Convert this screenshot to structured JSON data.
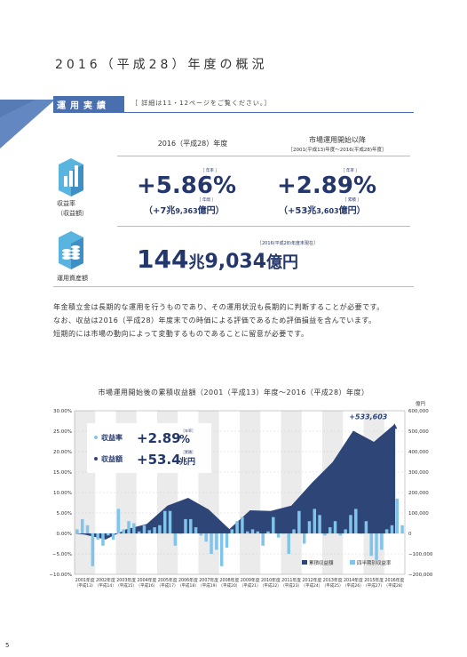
{
  "page": {
    "title": "2016（平成28）年度の概況",
    "number": "5"
  },
  "section": {
    "label": "運用実績",
    "note": "［ 詳細は11・12ページをご覧ください。］"
  },
  "columns": {
    "fy": "2016（平成28）年度",
    "since_title": "市場運用開始以降",
    "since_sub": "［2001(平成13)年度～2016(平成28)年度］"
  },
  "returns": {
    "label1": "収益率",
    "label2": "（収益額）",
    "fy_rate": "+5.86",
    "fy_rate_unit": "%",
    "fy_rate_tag": "［ 年率 ］",
    "fy_amount_open": "（+7",
    "fy_amount_cho": "兆",
    "fy_amount_num": "9,363",
    "fy_amount_oku": "億円",
    "fy_amount_close": "）",
    "fy_amount_tag": "［ 年間 ］",
    "since_rate": "+2.89",
    "since_rate_unit": "%",
    "since_rate_tag": "［ 年率 ］",
    "since_amount_open": "（+53",
    "since_amount_cho": "兆",
    "since_amount_num": "3,603",
    "since_amount_oku": "億円",
    "since_amount_close": "）",
    "since_amount_tag": "［ 累積 ］"
  },
  "assets": {
    "label": "運用資産額",
    "tag": "［2016(平成28)年度末現在］",
    "cho_num": "144",
    "cho": "兆",
    "oku_num": "9,034",
    "oku": "億円"
  },
  "body": {
    "lines": [
      "年金積立金は長期的な運用を行うものであり、その運用状況も長期的に判断することが必要です。",
      "なお、収益は2016（平成28）年度末での時価による評価であるため評価損益を含んでいます。",
      "短期的には市場の動向によって変動するものであることに留意が必要です。"
    ]
  },
  "chart": {
    "title": "市場運用開始後の累積収益額（2001（平成13）年度～2016（平成28）年度）",
    "right_unit": "億円",
    "peak_label": "+533,603",
    "box": {
      "rate_label": "収益率",
      "rate_value": "+2.89",
      "rate_unit": "%",
      "rate_tag": "［年率］",
      "amount_label": "収益額",
      "amount_value": "+53.4",
      "amount_unit": "兆円",
      "amount_tag": "［累積］"
    },
    "legend": {
      "cumulative": "累積収益額",
      "quarterly": "四半期別収益率"
    },
    "colors": {
      "area": "#2d4577",
      "bar": "#7fc4ea",
      "bg": "#ebebeb"
    }
  },
  "chart_data": {
    "type": "area",
    "title": "市場運用開始後の累積収益額（2001（平成13）年度～2016（平成28）年度）",
    "x_labels": [
      {
        "year": "2001年度",
        "era": "（平成13）"
      },
      {
        "year": "2002年度",
        "era": "（平成14）"
      },
      {
        "year": "2003年度",
        "era": "（平成15）"
      },
      {
        "year": "2004年度",
        "era": "（平成16）"
      },
      {
        "year": "2005年度",
        "era": "（平成17）"
      },
      {
        "year": "2006年度",
        "era": "（平成18）"
      },
      {
        "year": "2007年度",
        "era": "（平成19）"
      },
      {
        "year": "2008年度",
        "era": "（平成20）"
      },
      {
        "year": "2009年度",
        "era": "（平成21）"
      },
      {
        "year": "2010年度",
        "era": "（平成22）"
      },
      {
        "year": "2011年度",
        "era": "（平成23）"
      },
      {
        "year": "2012年度",
        "era": "（平成24）"
      },
      {
        "year": "2013年度",
        "era": "（平成25）"
      },
      {
        "year": "2014年度",
        "era": "（平成26）"
      },
      {
        "year": "2015年度",
        "era": "（平成27）"
      },
      {
        "year": "2016年度",
        "era": "（平成28）"
      }
    ],
    "left_axis": {
      "min": -10,
      "max": 30,
      "ticks": [
        "30.00%",
        "25.00%",
        "20.00%",
        "15.00%",
        "10.00%",
        "5.00%",
        "0.00%",
        "−5.00%",
        "−10.00%"
      ]
    },
    "right_axis": {
      "unit": "億円",
      "min": -200000,
      "max": 600000,
      "ticks": [
        "600,000",
        "500,000",
        "400,000",
        "300,000",
        "200,000",
        "100,000",
        "0",
        "−100,000",
        "−200,000"
      ]
    },
    "cumulative": {
      "name": "累積収益額",
      "x": [
        2001,
        2002,
        2003,
        2004,
        2005,
        2006,
        2007,
        2008,
        2009,
        2010,
        2011,
        2012,
        2013,
        2014,
        2015,
        2016
      ],
      "values": [
        -5800,
        -30000,
        20000,
        46000,
        136000,
        174000,
        117000,
        21000,
        113000,
        110000,
        136000,
        248000,
        349000,
        502000,
        448000,
        533603
      ]
    },
    "quarterly_returns": {
      "name": "四半期別収益率",
      "values": [
        1.0,
        3.5,
        2.0,
        -8.0,
        -1.5,
        -3.0,
        -0.5,
        -1.5,
        6.0,
        1.0,
        3.0,
        2.5,
        0.5,
        2.0,
        0.8,
        1.5,
        2.0,
        5.5,
        5.5,
        -3.0,
        0.0,
        3.5,
        3.5,
        1.5,
        -0.5,
        -2.0,
        -5.0,
        -4.0,
        -8.0,
        -3.5,
        1.0,
        3.0,
        4.0,
        0.5,
        1.0,
        0.5,
        -3.0,
        0.5,
        4.0,
        -1.0,
        0.0,
        -5.0,
        1.0,
        5.5,
        -2.5,
        3.0,
        6.0,
        4.5,
        -0.5,
        1.5,
        3.0,
        -0.5,
        1.0,
        4.5,
        6.0,
        0.0,
        3.0,
        -5.5,
        -6.5,
        -4.0,
        1.0,
        2.0,
        8.5,
        2.0
      ]
    }
  }
}
